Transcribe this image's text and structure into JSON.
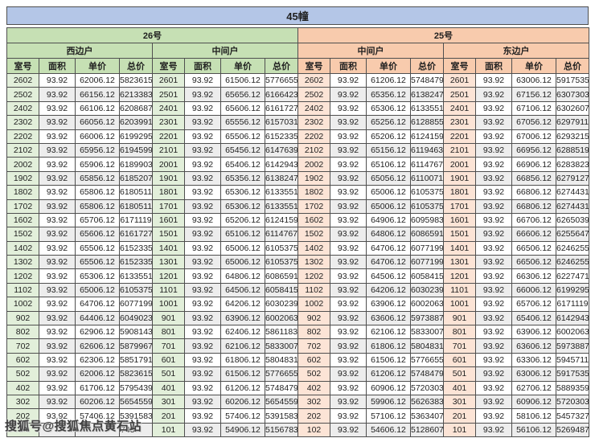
{
  "title": "45幢",
  "watermark": "搜狐号@搜狐焦点黄石站",
  "colors": {
    "title_bar": "#b4c6e7",
    "building26_header": "#c6e0b4",
    "building26_room_cell": "#e2efda",
    "building25_header": "#f8cbad",
    "building25_room_cell": "#fce4d6",
    "row_stripe": "#ededed",
    "border": "#4f4f4f"
  },
  "table": {
    "column_headers": [
      "室号",
      "面积",
      "单价",
      "总价"
    ],
    "obscured_note": "bottom-left row hidden by watermark, only trailing digits 743 visible",
    "sections": [
      {
        "building": "26号",
        "unit": "西边户",
        "theme": "green",
        "rows": [
          [
            "2602",
            "93.92",
            "62006.12",
            "5823615"
          ],
          [
            "2502",
            "93.92",
            "66156.12",
            "6213383"
          ],
          [
            "2402",
            "93.92",
            "66106.12",
            "6208687"
          ],
          [
            "2302",
            "93.92",
            "66056.12",
            "6203991"
          ],
          [
            "2202",
            "93.92",
            "66006.12",
            "6199295"
          ],
          [
            "2102",
            "93.92",
            "65956.12",
            "6194599"
          ],
          [
            "2002",
            "93.92",
            "65906.12",
            "6189903"
          ],
          [
            "1902",
            "93.92",
            "65856.12",
            "6185207"
          ],
          [
            "1802",
            "93.92",
            "65806.12",
            "6180511"
          ],
          [
            "1702",
            "93.92",
            "65806.12",
            "6180511"
          ],
          [
            "1602",
            "93.92",
            "65706.12",
            "6171119"
          ],
          [
            "1502",
            "93.92",
            "65606.12",
            "6161727"
          ],
          [
            "1402",
            "93.92",
            "65506.12",
            "6152335"
          ],
          [
            "1302",
            "93.92",
            "65506.12",
            "6152335"
          ],
          [
            "1202",
            "93.92",
            "65306.12",
            "6133551"
          ],
          [
            "1102",
            "93.92",
            "65006.12",
            "6105375"
          ],
          [
            "1002",
            "93.92",
            "64706.12",
            "6077199"
          ],
          [
            "902",
            "93.92",
            "64406.12",
            "6049023"
          ],
          [
            "802",
            "93.92",
            "62906.12",
            "5908143"
          ],
          [
            "702",
            "93.92",
            "62606.12",
            "5879967"
          ],
          [
            "602",
            "93.92",
            "62306.12",
            "5851791"
          ],
          [
            "502",
            "93.92",
            "62006.12",
            "5823615"
          ],
          [
            "402",
            "93.92",
            "61706.12",
            "5795439"
          ],
          [
            "302",
            "93.92",
            "60206.12",
            "5654559"
          ],
          [
            "202",
            "93.92",
            "57406.12",
            "5391583"
          ],
          [
            "",
            "",
            "",
            "743"
          ]
        ]
      },
      {
        "building": "26号",
        "unit": "中间户",
        "theme": "green",
        "rows": [
          [
            "2601",
            "93.92",
            "61506.12",
            "5776655"
          ],
          [
            "2501",
            "93.92",
            "65656.12",
            "6166423"
          ],
          [
            "2401",
            "93.92",
            "65606.12",
            "6161727"
          ],
          [
            "2301",
            "93.92",
            "65556.12",
            "6157031"
          ],
          [
            "2201",
            "93.92",
            "65506.12",
            "6152335"
          ],
          [
            "2101",
            "93.92",
            "65456.12",
            "6147639"
          ],
          [
            "2001",
            "93.92",
            "65406.12",
            "6142943"
          ],
          [
            "1901",
            "93.92",
            "65356.12",
            "6138247"
          ],
          [
            "1801",
            "93.92",
            "65306.12",
            "6133551"
          ],
          [
            "1701",
            "93.92",
            "65306.12",
            "6133551"
          ],
          [
            "1601",
            "93.92",
            "65206.12",
            "6124159"
          ],
          [
            "1501",
            "93.92",
            "65106.12",
            "6114767"
          ],
          [
            "1401",
            "93.92",
            "65006.12",
            "6105375"
          ],
          [
            "1301",
            "93.92",
            "65006.12",
            "6105375"
          ],
          [
            "1201",
            "93.92",
            "64806.12",
            "6086591"
          ],
          [
            "1101",
            "93.92",
            "64506.12",
            "6058415"
          ],
          [
            "1001",
            "93.92",
            "64206.12",
            "6030239"
          ],
          [
            "901",
            "93.92",
            "63906.12",
            "6002063"
          ],
          [
            "801",
            "93.92",
            "62406.12",
            "5861183"
          ],
          [
            "701",
            "93.92",
            "62106.12",
            "5833007"
          ],
          [
            "601",
            "93.92",
            "61806.12",
            "5804831"
          ],
          [
            "501",
            "93.92",
            "61506.12",
            "5776655"
          ],
          [
            "401",
            "93.92",
            "61206.12",
            "5748479"
          ],
          [
            "301",
            "93.92",
            "60206.12",
            "5654559"
          ],
          [
            "201",
            "93.92",
            "57406.12",
            "5391583"
          ],
          [
            "101",
            "93.92",
            "54906.12",
            "5156783"
          ]
        ]
      },
      {
        "building": "25号",
        "unit": "中间户",
        "theme": "orange",
        "rows": [
          [
            "2602",
            "93.92",
            "61206.12",
            "5748479"
          ],
          [
            "2502",
            "93.92",
            "65356.12",
            "6138247"
          ],
          [
            "2402",
            "93.92",
            "65306.12",
            "6133551"
          ],
          [
            "2302",
            "93.92",
            "65256.12",
            "6128855"
          ],
          [
            "2202",
            "93.92",
            "65206.12",
            "6124159"
          ],
          [
            "2102",
            "93.92",
            "65156.12",
            "6119463"
          ],
          [
            "2002",
            "93.92",
            "65106.12",
            "6114767"
          ],
          [
            "1902",
            "93.92",
            "65056.12",
            "6110071"
          ],
          [
            "1802",
            "93.92",
            "65006.12",
            "6105375"
          ],
          [
            "1702",
            "93.92",
            "65006.12",
            "6105375"
          ],
          [
            "1602",
            "93.92",
            "64906.12",
            "6095983"
          ],
          [
            "1502",
            "93.92",
            "64806.12",
            "6086591"
          ],
          [
            "1402",
            "93.92",
            "64706.12",
            "6077199"
          ],
          [
            "1302",
            "93.92",
            "64706.12",
            "6077199"
          ],
          [
            "1202",
            "93.92",
            "64506.12",
            "6058415"
          ],
          [
            "1102",
            "93.92",
            "64206.12",
            "6030239"
          ],
          [
            "1002",
            "93.92",
            "63906.12",
            "6002063"
          ],
          [
            "902",
            "93.92",
            "63606.12",
            "5973887"
          ],
          [
            "802",
            "93.92",
            "62106.12",
            "5833007"
          ],
          [
            "702",
            "93.92",
            "61806.12",
            "5804831"
          ],
          [
            "602",
            "93.92",
            "61506.12",
            "5776655"
          ],
          [
            "502",
            "93.92",
            "61206.12",
            "5748479"
          ],
          [
            "402",
            "93.92",
            "60906.12",
            "5720303"
          ],
          [
            "302",
            "93.92",
            "59906.12",
            "5626383"
          ],
          [
            "202",
            "93.92",
            "57106.12",
            "5363407"
          ],
          [
            "102",
            "93.92",
            "54606.12",
            "5128607"
          ]
        ]
      },
      {
        "building": "25号",
        "unit": "东边户",
        "theme": "orange",
        "rows": [
          [
            "2601",
            "93.92",
            "63006.12",
            "5917535"
          ],
          [
            "2501",
            "93.92",
            "67156.12",
            "6307303"
          ],
          [
            "2401",
            "93.92",
            "67106.12",
            "6302607"
          ],
          [
            "2301",
            "93.92",
            "67056.12",
            "6297911"
          ],
          [
            "2201",
            "93.92",
            "67006.12",
            "6293215"
          ],
          [
            "2101",
            "93.92",
            "66956.12",
            "6288519"
          ],
          [
            "2001",
            "93.92",
            "66906.12",
            "6283823"
          ],
          [
            "1901",
            "93.92",
            "66856.12",
            "6279127"
          ],
          [
            "1801",
            "93.92",
            "66806.12",
            "6274431"
          ],
          [
            "1701",
            "93.92",
            "66806.12",
            "6274431"
          ],
          [
            "1601",
            "93.92",
            "66706.12",
            "6265039"
          ],
          [
            "1501",
            "93.92",
            "66606.12",
            "6255647"
          ],
          [
            "1401",
            "93.92",
            "66506.12",
            "6246255"
          ],
          [
            "1301",
            "93.92",
            "66506.12",
            "6246255"
          ],
          [
            "1201",
            "93.92",
            "66306.12",
            "6227471"
          ],
          [
            "1101",
            "93.92",
            "66006.12",
            "6199295"
          ],
          [
            "1001",
            "93.92",
            "65706.12",
            "6171119"
          ],
          [
            "901",
            "93.92",
            "65406.12",
            "6142943"
          ],
          [
            "801",
            "93.92",
            "63906.12",
            "6002063"
          ],
          [
            "701",
            "93.92",
            "63606.12",
            "5973887"
          ],
          [
            "601",
            "93.92",
            "63306.12",
            "5945711"
          ],
          [
            "501",
            "93.92",
            "63006.12",
            "5917535"
          ],
          [
            "401",
            "93.92",
            "62706.12",
            "5889359"
          ],
          [
            "301",
            "93.92",
            "60906.12",
            "5720303"
          ],
          [
            "201",
            "93.92",
            "58106.12",
            "5457327"
          ],
          [
            "101",
            "93.92",
            "56106.12",
            "5269487"
          ]
        ]
      }
    ]
  }
}
